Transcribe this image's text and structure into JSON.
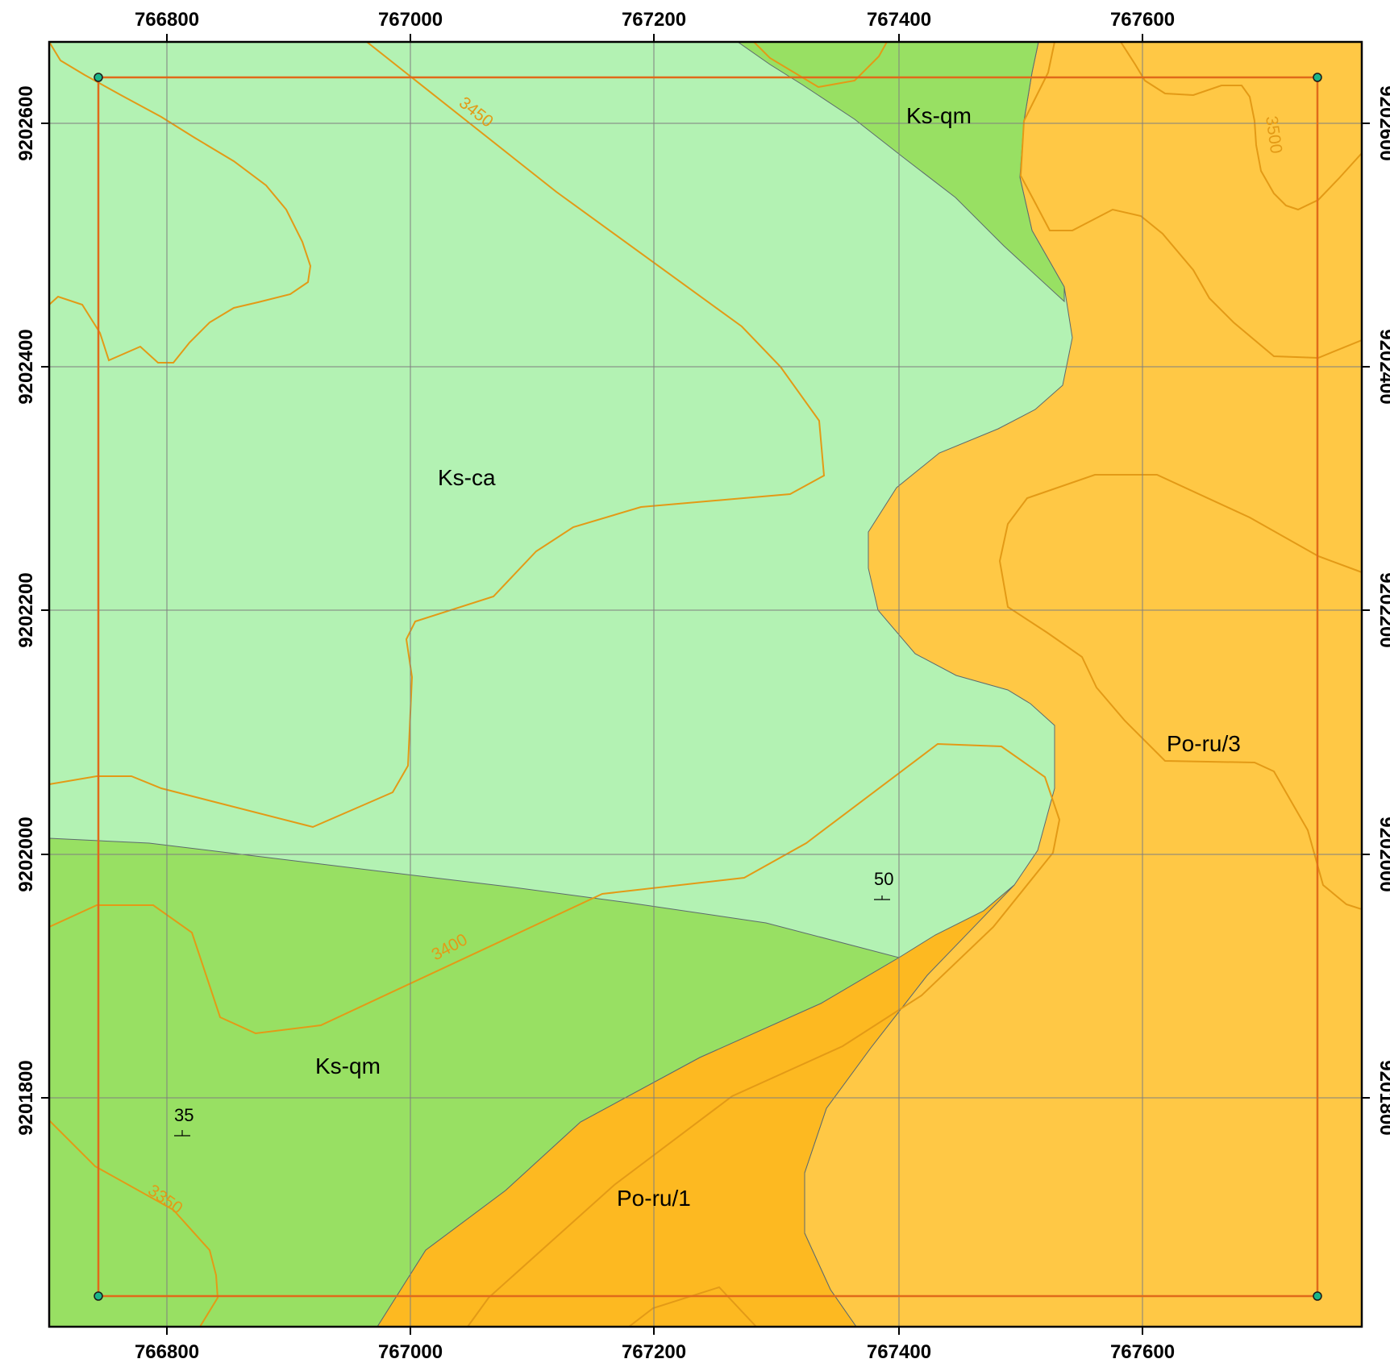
{
  "map": {
    "x_ticks": [
      "766800",
      "767000",
      "767200",
      "767400",
      "767600"
    ],
    "y_ticks": [
      "9202600",
      "9202400",
      "9202200",
      "9202000",
      "9201800"
    ],
    "units": {
      "ks_ca": "Ks-ca",
      "ks_qm_top": "Ks-qm",
      "ks_qm_bottom": "Ks-qm",
      "po_ru_1": "Po-ru/1",
      "po_ru_3": "Po-ru/3"
    },
    "contours": {
      "c3450": "3450",
      "c3400": "3400",
      "c3350": "3350",
      "c3500": "3500"
    },
    "dips": {
      "d50": "50",
      "d35": "35"
    },
    "colors": {
      "ks_ca": "#b3f2b3",
      "ks_qm": "#98e063",
      "po_ru_1": "#fdb921",
      "po_ru_3": "#ffc845",
      "contour": "#e39a16",
      "boundary": "#e06a1a",
      "grid": "#7f7f7f"
    }
  }
}
